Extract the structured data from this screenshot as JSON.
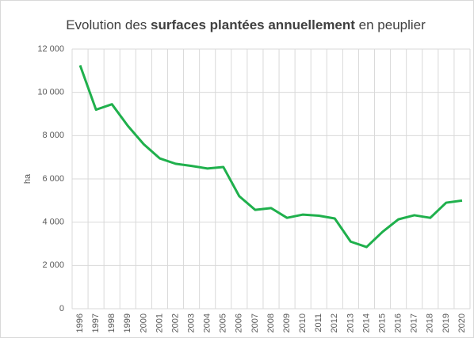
{
  "chart_data": {
    "type": "line",
    "title": [
      "Evolution des ",
      "surfaces plantées annuellement",
      " en peuplier"
    ],
    "title_bold": 1,
    "ylabel": "ha",
    "categories": [
      "1996",
      "1997",
      "1998",
      "1999",
      "2000",
      "2001",
      "2002",
      "2003",
      "2004",
      "2005",
      "2006",
      "2007",
      "2008",
      "2009",
      "2010",
      "2011",
      "2012",
      "2013",
      "2014",
      "2015",
      "2016",
      "2017",
      "2018",
      "2019",
      "2020"
    ],
    "series": [
      {
        "name": "ha",
        "color": "#1fb04c",
        "values": [
          11250,
          9200,
          9450,
          8450,
          7600,
          6950,
          6700,
          6600,
          6480,
          6550,
          5200,
          4570,
          4650,
          4200,
          4350,
          4300,
          4170,
          3100,
          2850,
          3550,
          4130,
          4320,
          4200,
          4900,
          5000
        ]
      }
    ],
    "ylim": [
      0,
      12000
    ],
    "yticks": [
      0,
      {
        "value": 2000,
        "label": "2 000"
      },
      {
        "value": 4000,
        "label": "4 000"
      },
      {
        "value": 6000,
        "label": "6 000"
      },
      {
        "value": 8000,
        "label": "8 000"
      },
      {
        "value": 10000,
        "label": "10 000"
      },
      {
        "value": 12000,
        "label": "12 000"
      }
    ],
    "grid": true
  }
}
